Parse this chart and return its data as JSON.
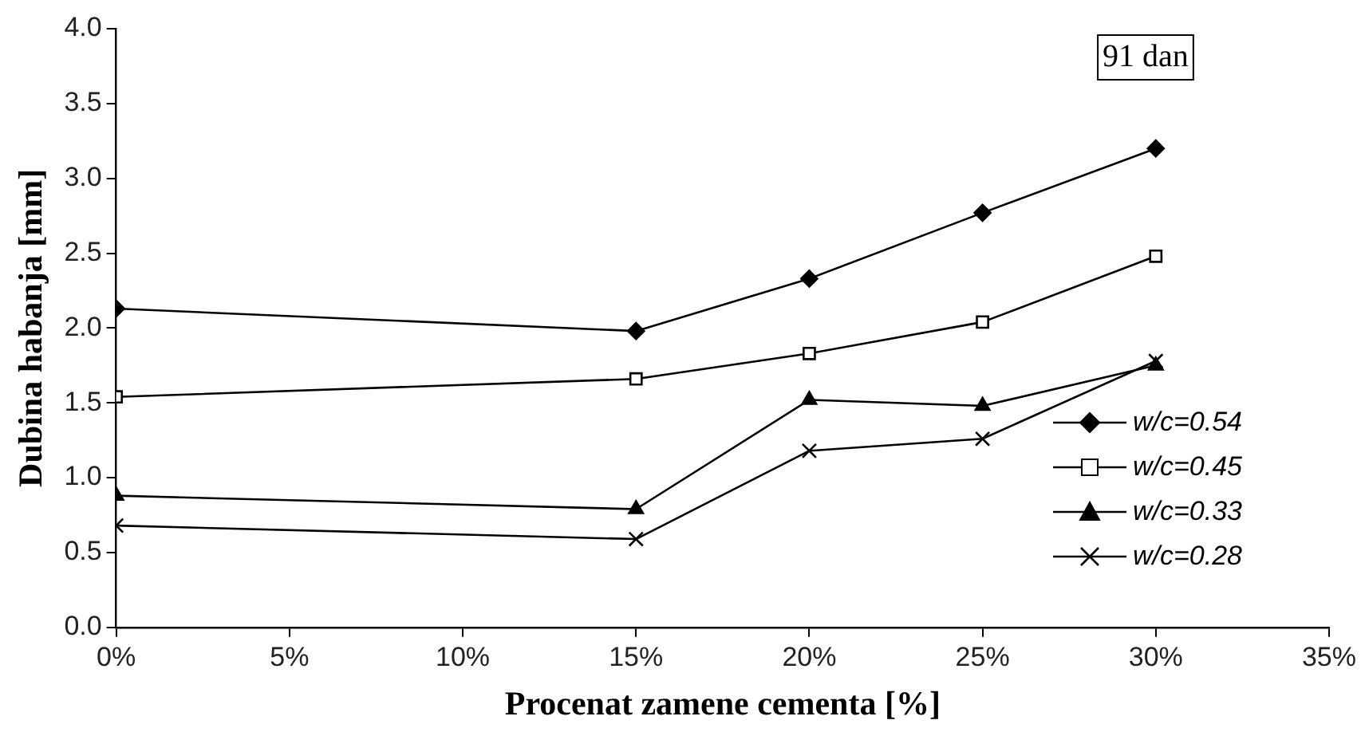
{
  "chart_data": {
    "type": "line",
    "xlabel": "Procenat zamene cementa [%]",
    "ylabel": "Dubina habanja [mm]",
    "annotations": [
      "91 dan"
    ],
    "x": [
      0,
      15,
      20,
      25,
      30
    ],
    "xlim": [
      0,
      35
    ],
    "xticks": [
      {
        "value": 0,
        "label": "0%"
      },
      {
        "value": 5,
        "label": "5%"
      },
      {
        "value": 10,
        "label": "10%"
      },
      {
        "value": 15,
        "label": "15%"
      },
      {
        "value": 20,
        "label": "20%"
      },
      {
        "value": 25,
        "label": "25%"
      },
      {
        "value": 30,
        "label": "30%"
      },
      {
        "value": 35,
        "label": "35%"
      }
    ],
    "ylim": [
      0,
      4
    ],
    "yticks": [
      {
        "value": 0,
        "label": "0.0"
      },
      {
        "value": 0.5,
        "label": "0.5"
      },
      {
        "value": 1,
        "label": "1.0"
      },
      {
        "value": 1.5,
        "label": "1.5"
      },
      {
        "value": 2,
        "label": "2.0"
      },
      {
        "value": 2.5,
        "label": "2.5"
      },
      {
        "value": 3,
        "label": "3.0"
      },
      {
        "value": 3.5,
        "label": "3.5"
      },
      {
        "value": 4,
        "label": "4.0"
      }
    ],
    "grid": false,
    "legend": "right",
    "line_style": "solid",
    "series": [
      {
        "name": "w/c=0.54",
        "color": "#000000",
        "marker": "diamond",
        "values": [
          2.13,
          1.98,
          2.33,
          2.77,
          3.2
        ]
      },
      {
        "name": "w/c=0.45",
        "color": "#000000",
        "marker": "square",
        "values": [
          1.54,
          1.66,
          1.83,
          2.04,
          2.48
        ]
      },
      {
        "name": "w/c=0.33",
        "color": "#000000",
        "marker": "triangle",
        "values": [
          0.88,
          0.79,
          1.52,
          1.48,
          1.75
        ]
      },
      {
        "name": "w/c=0.28",
        "color": "#000000",
        "marker": "cross",
        "values": [
          0.68,
          0.59,
          1.18,
          1.26,
          1.78
        ]
      }
    ]
  }
}
